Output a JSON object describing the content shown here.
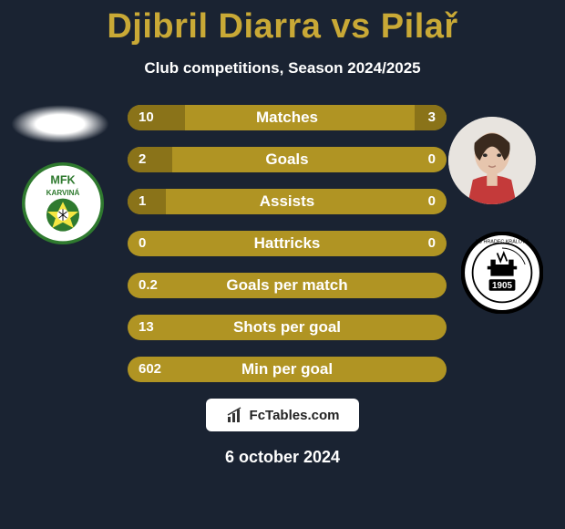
{
  "title": "Djibril Diarra vs Pilař",
  "subtitle": "Club competitions, Season 2024/2025",
  "date": "6 october 2024",
  "footer_text": "FcTables.com",
  "colors": {
    "background": "#1a2332",
    "title": "#c9a936",
    "text": "#ffffff",
    "bar_bg": "#b09423",
    "bar_fill": "#8a7319"
  },
  "bars": [
    {
      "label": "Matches",
      "left": "10",
      "right": "3",
      "fill_left_pct": 18,
      "fill_right_pct": 10
    },
    {
      "label": "Goals",
      "left": "2",
      "right": "0",
      "fill_left_pct": 14,
      "fill_right_pct": 0
    },
    {
      "label": "Assists",
      "left": "1",
      "right": "0",
      "fill_left_pct": 12,
      "fill_right_pct": 0
    },
    {
      "label": "Hattricks",
      "left": "0",
      "right": "0",
      "fill_left_pct": 0,
      "fill_right_pct": 0
    },
    {
      "label": "Goals per match",
      "left": "0.2",
      "right": "",
      "fill_left_pct": 0,
      "fill_right_pct": 0
    },
    {
      "label": "Shots per goal",
      "left": "13",
      "right": "",
      "fill_left_pct": 0,
      "fill_right_pct": 0
    },
    {
      "label": "Min per goal",
      "left": "602",
      "right": "",
      "fill_left_pct": 0,
      "fill_right_pct": 0
    }
  ],
  "left_club": {
    "name": "MFK Karviná",
    "badge_bg": "#ffffff",
    "badge_ring": "#2f7a2f",
    "badge_text": "MFK\nKARVINÁ"
  },
  "right_club": {
    "name": "FC Hradec Králové",
    "badge_bg": "#ffffff",
    "badge_ring": "#000000",
    "badge_year": "1905"
  }
}
